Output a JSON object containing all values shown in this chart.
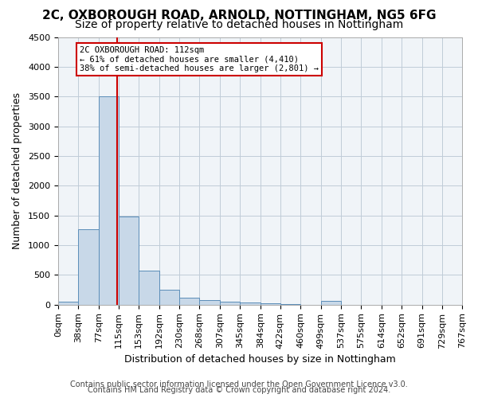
{
  "title1": "2C, OXBOROUGH ROAD, ARNOLD, NOTTINGHAM, NG5 6FG",
  "title2": "Size of property relative to detached houses in Nottingham",
  "xlabel": "Distribution of detached houses by size in Nottingham",
  "ylabel": "Number of detached properties",
  "footer1": "Contains HM Land Registry data © Crown copyright and database right 2024.",
  "footer2": "Contains public sector information licensed under the Open Government Licence v3.0.",
  "bin_edges": [
    0,
    38,
    77,
    115,
    153,
    192,
    230,
    268,
    307,
    345,
    384,
    422,
    460,
    499,
    537,
    575,
    614,
    652,
    691,
    729,
    767
  ],
  "bar_heights": [
    50,
    1270,
    3500,
    1480,
    570,
    250,
    120,
    80,
    50,
    30,
    20,
    10,
    0,
    60,
    0,
    0,
    0,
    0,
    0,
    0
  ],
  "bar_color": "#c8d8e8",
  "bar_edge_color": "#5b8db8",
  "property_size": 112,
  "vline_color": "#cc0000",
  "annotation_text": "2C OXBOROUGH ROAD: 112sqm\n← 61% of detached houses are smaller (4,410)\n38% of semi-detached houses are larger (2,801) →",
  "annotation_box_color": "#cc0000",
  "annotation_text_color": "#000000",
  "bg_color": "#f0f4f8",
  "grid_color": "#c0ccd8",
  "ylim": [
    0,
    4500
  ],
  "xlim": [
    0,
    767
  ],
  "title1_fontsize": 11,
  "title2_fontsize": 10,
  "axis_fontsize": 9,
  "tick_fontsize": 8,
  "footer_fontsize": 7
}
